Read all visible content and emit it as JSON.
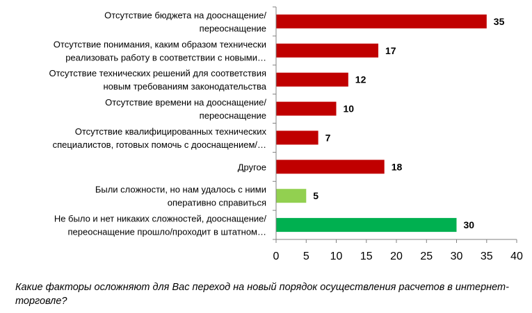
{
  "chart_data": {
    "type": "bar",
    "orientation": "horizontal",
    "categories": [
      [
        "Отсутствие бюджета на дооснащение/",
        "переоснащение"
      ],
      [
        "Отсутствие понимания, каким образом технически",
        "реализовать работу в соответствии с новыми…"
      ],
      [
        "Отсутствие технических решений для соответствия",
        "новым требованиям законодательства"
      ],
      [
        "Отсутствие времени на дооснащение/",
        "переоснащение"
      ],
      [
        "Отсутствие квалифицированных технических",
        "специалистов, готовых помочь с дооснащением/…"
      ],
      [
        "Другое"
      ],
      [
        "Были сложности, но нам удалось с ними",
        "оперативно справиться"
      ],
      [
        "Не было и нет никаких сложностей, дооснащение/",
        "переоснащение прошло/проходит в штатном…"
      ]
    ],
    "values": [
      35,
      17,
      12,
      10,
      7,
      18,
      5,
      30
    ],
    "bar_colors": [
      "#c00000",
      "#c00000",
      "#c00000",
      "#c00000",
      "#c00000",
      "#c00000",
      "#92d050",
      "#00b050"
    ],
    "xlim": [
      0,
      40
    ],
    "xticks": [
      0,
      5,
      10,
      15,
      20,
      25,
      30,
      35,
      40
    ],
    "grid": false,
    "caption": "Какие факторы осложняют для Вас переход на новый порядок осуществления расчетов в интернет-торговле?"
  }
}
